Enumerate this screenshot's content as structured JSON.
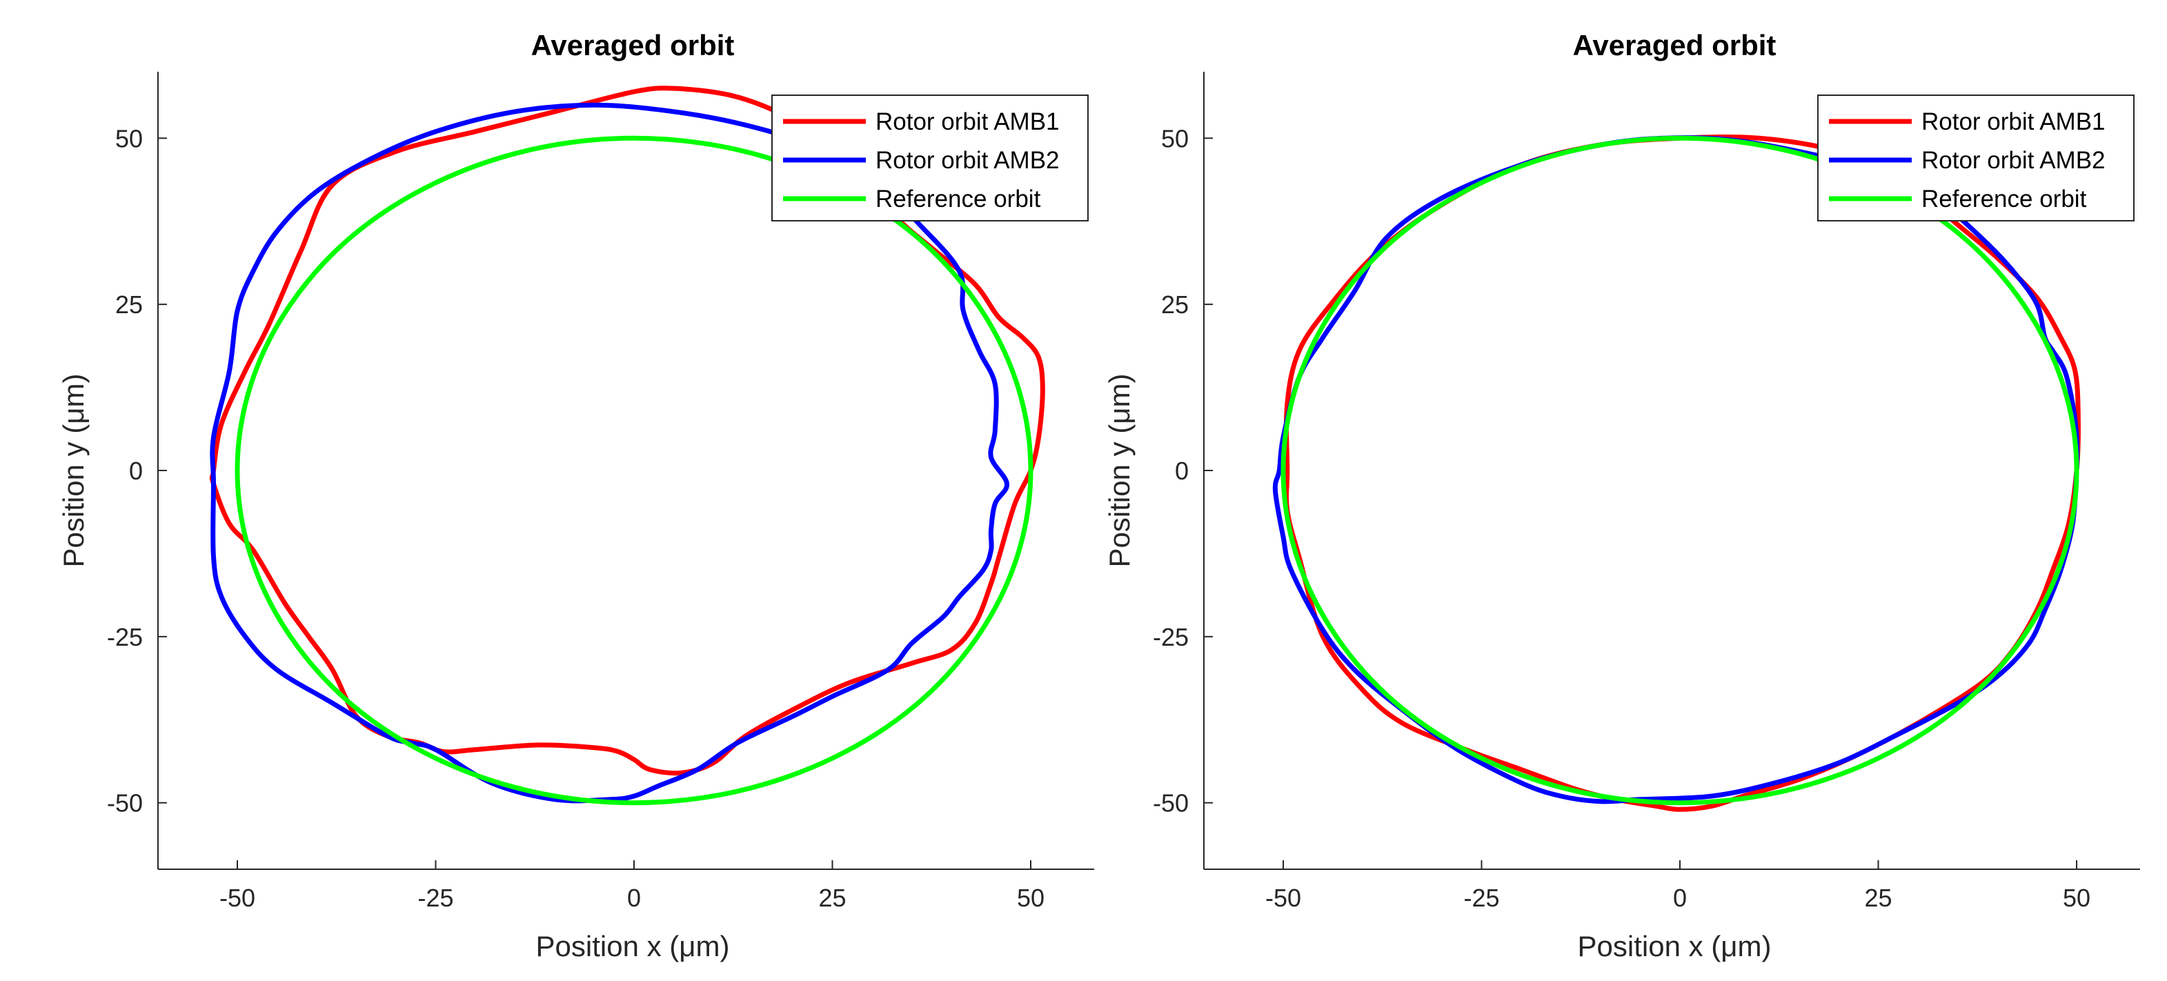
{
  "chart_data": [
    {
      "type": "line",
      "title": "Averaged orbit",
      "xlabel": "Position x (μm)",
      "ylabel": "Position y (μm)",
      "xlim": [
        -60,
        58
      ],
      "ylim": [
        -60,
        60
      ],
      "xticks": [
        -50,
        -25,
        0,
        25,
        50
      ],
      "yticks": [
        -50,
        -25,
        0,
        25,
        50
      ],
      "legend_location": "top-right",
      "series": [
        {
          "name": "Rotor orbit AMB1",
          "color": "#ff0000",
          "points": [
            [
              -53,
              0
            ],
            [
              -52,
              7
            ],
            [
              -49,
              15
            ],
            [
              -46,
              22
            ],
            [
              -42,
              33
            ],
            [
              -38,
              43
            ],
            [
              -30,
              48
            ],
            [
              -20,
              51
            ],
            [
              -10,
              54
            ],
            [
              0,
              57
            ],
            [
              5,
              57.5
            ],
            [
              12,
              56.5
            ],
            [
              18,
              54
            ],
            [
              24,
              50
            ],
            [
              28,
              46
            ],
            [
              31,
              41
            ],
            [
              34,
              37
            ],
            [
              38,
              33
            ],
            [
              43,
              28
            ],
            [
              46,
              23
            ],
            [
              49,
              20
            ],
            [
              51,
              17
            ],
            [
              51.5,
              12
            ],
            [
              51,
              5
            ],
            [
              50,
              0
            ],
            [
              48,
              -5
            ],
            [
              46,
              -13
            ],
            [
              45,
              -17
            ],
            [
              43,
              -23
            ],
            [
              40,
              -27
            ],
            [
              35,
              -29
            ],
            [
              27,
              -32
            ],
            [
              20,
              -36
            ],
            [
              14,
              -40
            ],
            [
              10,
              -44
            ],
            [
              6,
              -45.5
            ],
            [
              2,
              -45
            ],
            [
              0,
              -43.5
            ],
            [
              -2,
              -42.3
            ],
            [
              -5,
              -41.7
            ],
            [
              -12,
              -41.3
            ],
            [
              -20,
              -42
            ],
            [
              -24,
              -42.3
            ],
            [
              -27,
              -41
            ],
            [
              -31,
              -40
            ],
            [
              -35,
              -37
            ],
            [
              -38,
              -30
            ],
            [
              -41,
              -25
            ],
            [
              -44,
              -20
            ],
            [
              -48,
              -12
            ],
            [
              -51,
              -8
            ],
            [
              -53,
              -2
            ],
            [
              -53,
              0
            ]
          ]
        },
        {
          "name": "Rotor orbit AMB2",
          "color": "#0000ff",
          "points": [
            [
              -53,
              -2
            ],
            [
              -53,
              5
            ],
            [
              -51,
              15
            ],
            [
              -50,
              24
            ],
            [
              -48,
              30
            ],
            [
              -45,
              36
            ],
            [
              -40,
              42
            ],
            [
              -33,
              47
            ],
            [
              -25,
              51
            ],
            [
              -15,
              54
            ],
            [
              -5,
              55
            ],
            [
              5,
              54
            ],
            [
              14,
              52
            ],
            [
              22,
              49
            ],
            [
              30,
              44
            ],
            [
              36,
              37
            ],
            [
              41,
              30
            ],
            [
              41.5,
              24
            ],
            [
              43.5,
              18
            ],
            [
              45.5,
              13
            ],
            [
              45.5,
              6
            ],
            [
              45,
              2
            ],
            [
              47,
              -2
            ],
            [
              45.5,
              -5
            ],
            [
              45,
              -9
            ],
            [
              45,
              -12
            ],
            [
              44,
              -15
            ],
            [
              41,
              -19
            ],
            [
              39,
              -22
            ],
            [
              35,
              -26
            ],
            [
              32,
              -30
            ],
            [
              25,
              -34
            ],
            [
              20,
              -37
            ],
            [
              13,
              -41
            ],
            [
              8,
              -45
            ],
            [
              3,
              -47.5
            ],
            [
              0,
              -49
            ],
            [
              -3,
              -49.5
            ],
            [
              -10,
              -49.5
            ],
            [
              -18,
              -47
            ],
            [
              -25,
              -42
            ],
            [
              -28,
              -41
            ],
            [
              -31,
              -40
            ],
            [
              -38,
              -35
            ],
            [
              -45,
              -30
            ],
            [
              -49,
              -25
            ],
            [
              -52,
              -19
            ],
            [
              -53,
              -13
            ],
            [
              -53,
              -2
            ]
          ]
        },
        {
          "name": "Reference orbit",
          "color": "#00ff00",
          "points": [
            [
              50,
              0
            ],
            [
              48.3,
              12.9
            ],
            [
              43.3,
              25
            ],
            [
              35.4,
              35.4
            ],
            [
              25,
              43.3
            ],
            [
              12.9,
              48.3
            ],
            [
              0,
              50
            ],
            [
              -12.9,
              48.3
            ],
            [
              -25,
              43.3
            ],
            [
              -35.4,
              35.4
            ],
            [
              -43.3,
              25
            ],
            [
              -48.3,
              12.9
            ],
            [
              -50,
              0
            ],
            [
              -48.3,
              -12.9
            ],
            [
              -43.3,
              -25
            ],
            [
              -35.4,
              -35.4
            ],
            [
              -25,
              -43.3
            ],
            [
              -12.9,
              -48.3
            ],
            [
              0,
              -50
            ],
            [
              12.9,
              -48.3
            ],
            [
              25,
              -43.3
            ],
            [
              35.4,
              -35.4
            ],
            [
              43.3,
              -25
            ],
            [
              48.3,
              -12.9
            ],
            [
              50,
              0
            ]
          ]
        }
      ]
    },
    {
      "type": "line",
      "title": "Averaged orbit",
      "xlabel": "Position x (μm)",
      "ylabel": "Position y (μm)",
      "xlim": [
        -60,
        58
      ],
      "ylim": [
        -60,
        60
      ],
      "xticks": [
        -50,
        -25,
        0,
        25,
        50
      ],
      "yticks": [
        -50,
        -25,
        0,
        25,
        50
      ],
      "legend_location": "top-right",
      "series": [
        {
          "name": "Rotor orbit AMB1",
          "color": "#ff0000",
          "points": [
            [
              -49.5,
              0
            ],
            [
              -49.5,
              10
            ],
            [
              -48,
              18
            ],
            [
              -44,
              25
            ],
            [
              -38,
              33
            ],
            [
              -30,
              40
            ],
            [
              -20,
              46
            ],
            [
              -10,
              49
            ],
            [
              0,
              50
            ],
            [
              10,
              50
            ],
            [
              20,
              48
            ],
            [
              28,
              44
            ],
            [
              35,
              37
            ],
            [
              40,
              32
            ],
            [
              45,
              26
            ],
            [
              48,
              20
            ],
            [
              49.8,
              15
            ],
            [
              50.2,
              8
            ],
            [
              50,
              0
            ],
            [
              49,
              -8
            ],
            [
              47,
              -15
            ],
            [
              45,
              -21
            ],
            [
              42,
              -27
            ],
            [
              38,
              -32
            ],
            [
              30,
              -38
            ],
            [
              22,
              -43
            ],
            [
              15,
              -46.5
            ],
            [
              8,
              -49
            ],
            [
              4,
              -50.5
            ],
            [
              0,
              -51
            ],
            [
              -3,
              -50.5
            ],
            [
              -8,
              -49.5
            ],
            [
              -13,
              -48
            ],
            [
              -20,
              -45
            ],
            [
              -27,
              -42
            ],
            [
              -35,
              -38
            ],
            [
              -40,
              -33
            ],
            [
              -45,
              -25
            ],
            [
              -48,
              -13
            ],
            [
              -49.5,
              -6
            ],
            [
              -49.5,
              0
            ]
          ]
        },
        {
          "name": "Rotor orbit AMB2",
          "color": "#0000ff",
          "points": [
            [
              -50.5,
              0
            ],
            [
              -50,
              5
            ],
            [
              -48,
              14
            ],
            [
              -45,
              20
            ],
            [
              -41,
              27
            ],
            [
              -37,
              35
            ],
            [
              -30,
              41
            ],
            [
              -20,
              46
            ],
            [
              -10,
              49
            ],
            [
              -2,
              50
            ],
            [
              6,
              49.8
            ],
            [
              15,
              48
            ],
            [
              25,
              45
            ],
            [
              33,
              40
            ],
            [
              38,
              35
            ],
            [
              42,
              30
            ],
            [
              45,
              25
            ],
            [
              46,
              20
            ],
            [
              47,
              18
            ],
            [
              48.5,
              15
            ],
            [
              49.5,
              10
            ],
            [
              50,
              5
            ],
            [
              50,
              0
            ],
            [
              49.5,
              -8
            ],
            [
              48,
              -15
            ],
            [
              46,
              -21
            ],
            [
              44,
              -26
            ],
            [
              40,
              -31
            ],
            [
              35,
              -35
            ],
            [
              27,
              -40
            ],
            [
              20,
              -44
            ],
            [
              12,
              -47
            ],
            [
              4,
              -49
            ],
            [
              -5,
              -49.5
            ],
            [
              -10,
              -49.8
            ],
            [
              -15,
              -49
            ],
            [
              -20,
              -47
            ],
            [
              -28,
              -42
            ],
            [
              -35,
              -36
            ],
            [
              -41,
              -30
            ],
            [
              -45,
              -24
            ],
            [
              -49,
              -15
            ],
            [
              -50,
              -10
            ],
            [
              -51,
              -3
            ],
            [
              -50.5,
              0
            ]
          ]
        },
        {
          "name": "Reference orbit",
          "color": "#00ff00",
          "points": [
            [
              50,
              0
            ],
            [
              48.3,
              12.9
            ],
            [
              43.3,
              25
            ],
            [
              35.4,
              35.4
            ],
            [
              25,
              43.3
            ],
            [
              12.9,
              48.3
            ],
            [
              0,
              50
            ],
            [
              -12.9,
              48.3
            ],
            [
              -25,
              43.3
            ],
            [
              -35.4,
              35.4
            ],
            [
              -43.3,
              25
            ],
            [
              -48.3,
              12.9
            ],
            [
              -50,
              0
            ],
            [
              -48.3,
              -12.9
            ],
            [
              -43.3,
              -25
            ],
            [
              -35.4,
              -35.4
            ],
            [
              -25,
              -43.3
            ],
            [
              -12.9,
              -48.3
            ],
            [
              0,
              -50
            ],
            [
              12.9,
              -48.3
            ],
            [
              25,
              -43.3
            ],
            [
              35.4,
              -35.4
            ],
            [
              43.3,
              -25
            ],
            [
              48.3,
              -12.9
            ],
            [
              50,
              0
            ]
          ]
        }
      ]
    }
  ]
}
